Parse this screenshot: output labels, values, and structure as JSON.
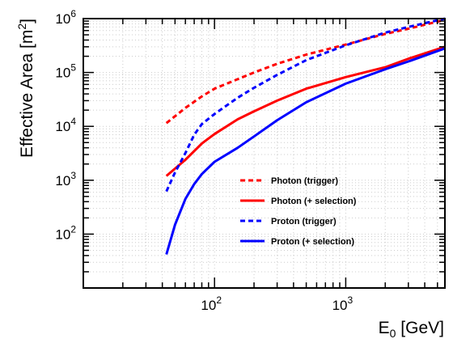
{
  "chart_data": {
    "type": "line",
    "xscale": "log",
    "yscale": "log",
    "xlim": [
      10,
      5700
    ],
    "ylim": [
      10,
      1000000
    ],
    "grid": true,
    "legend_position": "center-right",
    "xlabel": {
      "main": "E",
      "sub": "0",
      "rest": " [GeV]"
    },
    "ylabel": {
      "main": "Effective Area [m",
      "sup": "2",
      "rest": "]"
    },
    "x_ticks": [
      {
        "value": 100,
        "base": "10",
        "exp": "2"
      },
      {
        "value": 1000,
        "base": "10",
        "exp": "3"
      }
    ],
    "y_ticks": [
      {
        "value": 100,
        "base": "10",
        "exp": "2"
      },
      {
        "value": 1000,
        "base": "10",
        "exp": "3"
      },
      {
        "value": 10000,
        "base": "10",
        "exp": "4"
      },
      {
        "value": 100000,
        "base": "10",
        "exp": "5"
      },
      {
        "value": 1000000,
        "base": "10",
        "exp": "6"
      }
    ],
    "series": [
      {
        "name": "Photon (trigger)",
        "color": "#ff0000",
        "dash": true,
        "points": [
          [
            43,
            11500
          ],
          [
            60,
            22000
          ],
          [
            80,
            36000
          ],
          [
            100,
            50000
          ],
          [
            150,
            75000
          ],
          [
            200,
            100000
          ],
          [
            300,
            145000
          ],
          [
            500,
            215000
          ],
          [
            1000,
            330000
          ],
          [
            2000,
            520000
          ],
          [
            3000,
            650000
          ],
          [
            5700,
            950000
          ]
        ]
      },
      {
        "name": "Photon (+ selection)",
        "color": "#ff0000",
        "dash": false,
        "points": [
          [
            43,
            1200
          ],
          [
            60,
            2400
          ],
          [
            80,
            4800
          ],
          [
            100,
            7200
          ],
          [
            150,
            13500
          ],
          [
            200,
            19000
          ],
          [
            300,
            30000
          ],
          [
            500,
            50000
          ],
          [
            1000,
            82000
          ],
          [
            2000,
            125000
          ],
          [
            3000,
            180000
          ],
          [
            5700,
            300000
          ]
        ]
      },
      {
        "name": "Proton (trigger)",
        "color": "#0000ff",
        "dash": true,
        "points": [
          [
            43,
            620
          ],
          [
            50,
            1400
          ],
          [
            60,
            3200
          ],
          [
            70,
            7000
          ],
          [
            80,
            11000
          ],
          [
            100,
            17000
          ],
          [
            150,
            34000
          ],
          [
            200,
            52000
          ],
          [
            300,
            90000
          ],
          [
            500,
            170000
          ],
          [
            1000,
            320000
          ],
          [
            2000,
            550000
          ],
          [
            3000,
            700000
          ],
          [
            5700,
            1000000
          ]
        ]
      },
      {
        "name": "Proton (+ selection)",
        "color": "#0000ff",
        "dash": false,
        "points": [
          [
            43,
            42
          ],
          [
            50,
            150
          ],
          [
            60,
            450
          ],
          [
            70,
            850
          ],
          [
            80,
            1300
          ],
          [
            100,
            2200
          ],
          [
            150,
            4000
          ],
          [
            200,
            6500
          ],
          [
            300,
            13000
          ],
          [
            500,
            28000
          ],
          [
            1000,
            62000
          ],
          [
            2000,
            115000
          ],
          [
            3000,
            160000
          ],
          [
            5700,
            280000
          ]
        ]
      }
    ]
  }
}
